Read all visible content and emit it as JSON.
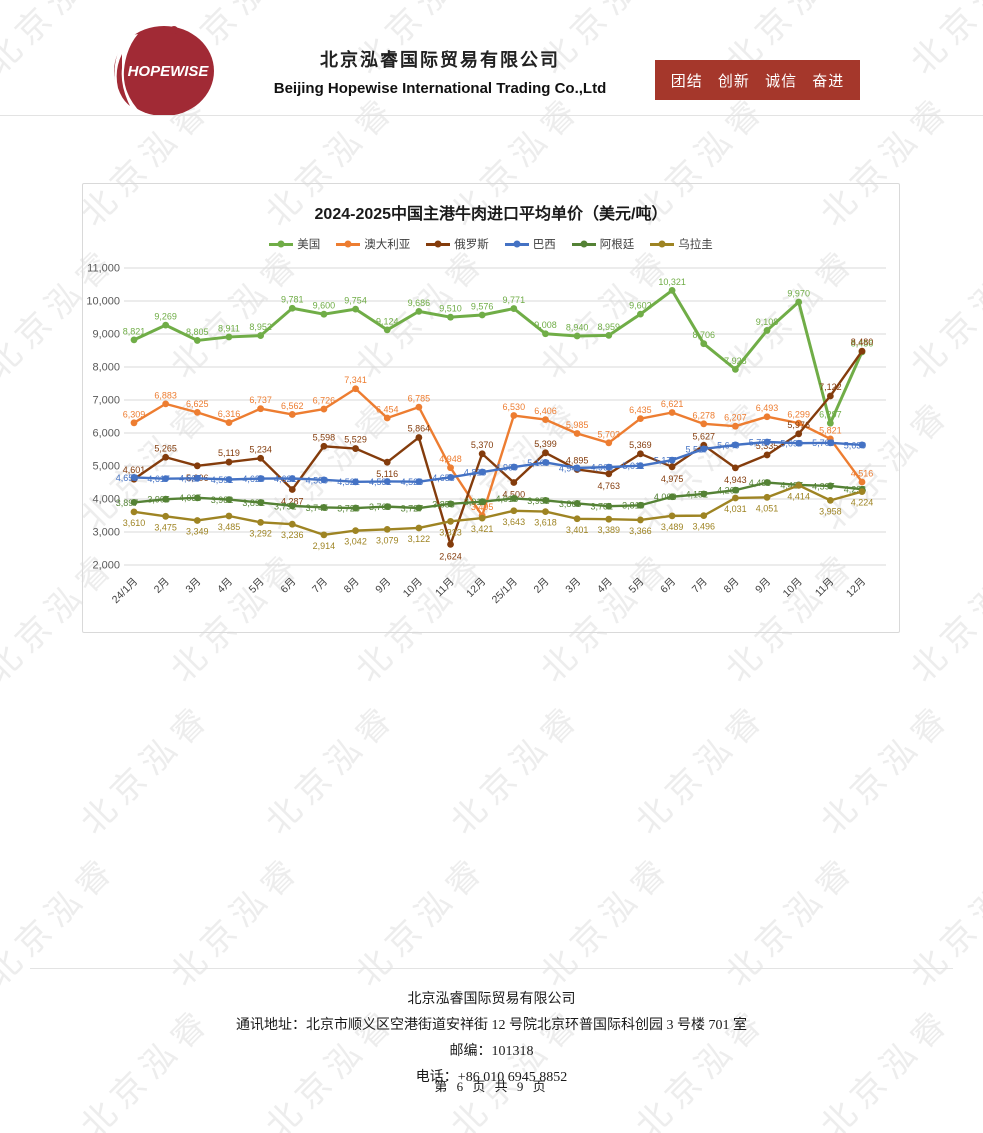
{
  "watermark": {
    "text": "北京泓睿"
  },
  "header": {
    "logo_text": "HOPEWISE",
    "logo_color": "#a12a35",
    "company_cn": "北京泓睿国际贸易有限公司",
    "company_en": "Beijing Hopewise International Trading Co.,Ltd",
    "banner": "团结 创新 诚信 奋进",
    "banner_color": "#a5372b"
  },
  "chart_data": {
    "type": "line",
    "title": "2024-2025中国主港牛肉进口平均单价（美元/吨）",
    "ylim": [
      2000,
      11000
    ],
    "ytick_step": 1000,
    "grid": "horizontal",
    "legend_position": "top",
    "categories": [
      "24/1月",
      "2月",
      "3月",
      "4月",
      "5月",
      "6月",
      "7月",
      "8月",
      "9月",
      "10月",
      "11月",
      "12月",
      "25/1月",
      "2月",
      "3月",
      "4月",
      "5月",
      "6月",
      "7月",
      "8月",
      "9月",
      "10月",
      "11月",
      "12月"
    ],
    "series": [
      {
        "name": "美国",
        "color": "#70ad47",
        "values": [
          8821,
          9269,
          8805,
          8911,
          8952,
          9781,
          9600,
          9754,
          9124,
          9686,
          9510,
          9576,
          9771,
          9008,
          8940,
          8959,
          9602,
          10321,
          8706,
          7928,
          9108,
          9970,
          6297,
          8456
        ]
      },
      {
        "name": "澳大利亚",
        "color": "#ed7d31",
        "values": [
          6309,
          6883,
          6625,
          6316,
          6737,
          6562,
          6726,
          7341,
          6454,
          6785,
          4948,
          3495,
          6530,
          6406,
          5985,
          5703,
          6435,
          6621,
          6278,
          6207,
          6493,
          6299,
          5821,
          4516
        ]
      },
      {
        "name": "俄罗斯",
        "color": "#843c0c",
        "values": [
          4601,
          5265,
          5006,
          5119,
          5234,
          4287,
          5598,
          5529,
          5116,
          5864,
          2624,
          5370,
          4500,
          5399,
          4895,
          4763,
          5369,
          4975,
          5627,
          4943,
          5335,
          5976,
          7122,
          8480
        ]
      },
      {
        "name": "巴西",
        "color": "#4472c4",
        "values": [
          4653,
          4617,
          4627,
          4591,
          4620,
          4621,
          4580,
          4521,
          4531,
          4526,
          4656,
          4816,
          4969,
          5109,
          4941,
          4966,
          5011,
          5177,
          5517,
          5640,
          5727,
          5690,
          5703,
          5639
        ]
      },
      {
        "name": "阿根廷",
        "color": "#548235",
        "values": [
          3897,
          3995,
          4035,
          3982,
          3892,
          3792,
          3745,
          3726,
          3769,
          3727,
          3853,
          3918,
          4018,
          3958,
          3865,
          3781,
          3810,
          4068,
          4152,
          4269,
          4499,
          4427,
          4397,
          4296
        ]
      },
      {
        "name": "乌拉圭",
        "color": "#9e8423",
        "values": [
          3610,
          3475,
          3349,
          3485,
          3292,
          3236,
          2914,
          3042,
          3079,
          3122,
          3323,
          3421,
          3643,
          3618,
          3401,
          3389,
          3366,
          3489,
          3496,
          4031,
          4051,
          4414,
          3958,
          4224
        ]
      }
    ]
  },
  "footer": {
    "company": "北京泓睿国际贸易有限公司",
    "address": "通讯地址：北京市顺义区空港街道安祥街 12 号院北京环普国际科创园 3 号楼 701 室",
    "postal": "邮编：101318",
    "phone": "电话：+86 010 6945 8852",
    "page": "第 6 页 共 9 页"
  }
}
